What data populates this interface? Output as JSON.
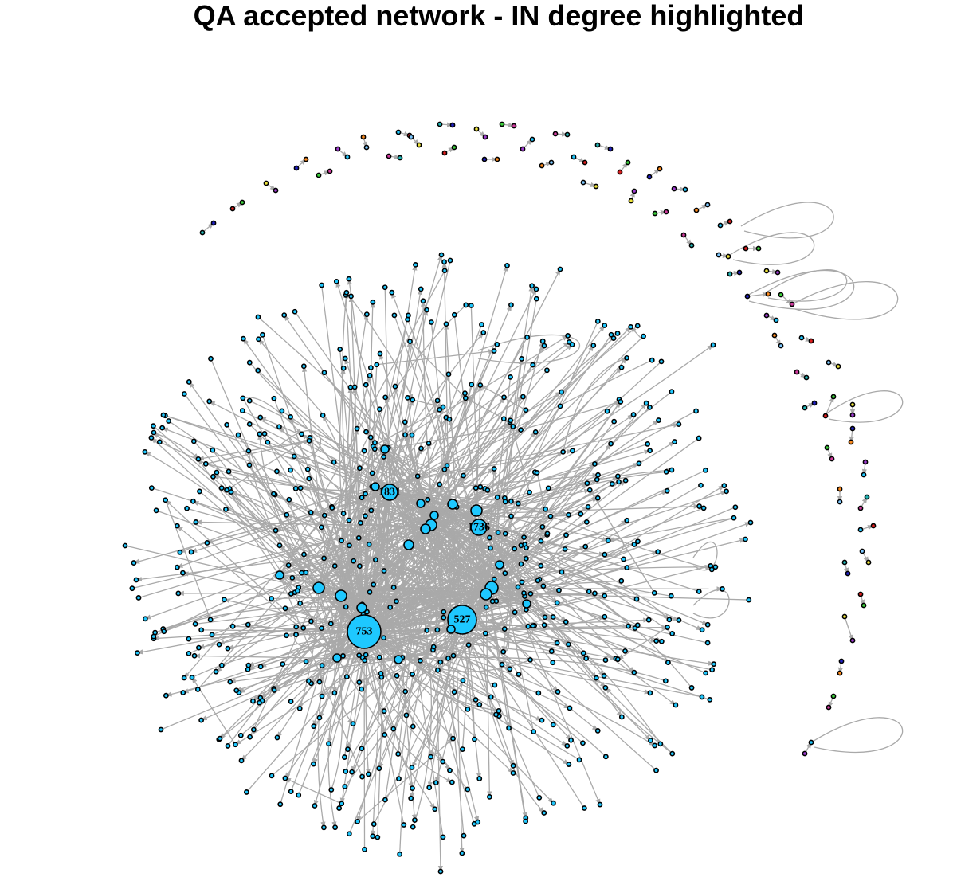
{
  "title": "QA accepted network - IN degree highlighted",
  "colors": {
    "main": "#1ec8ff",
    "edge": "#a9a9a9",
    "palette": [
      "#21b7b7",
      "#e01e1e",
      "#f0e63c",
      "#2121c8",
      "#3cd23c",
      "#a03cd2",
      "#ff8c1e",
      "#d23ca0",
      "#1ec8ff",
      "#7dc8ff"
    ]
  },
  "labeled_nodes": [
    {
      "id": "753",
      "size": "largest"
    },
    {
      "id": "527",
      "size": "large"
    },
    {
      "id": "1831",
      "size": "medium"
    },
    {
      "id": "1736",
      "size": "medium"
    }
  ]
}
